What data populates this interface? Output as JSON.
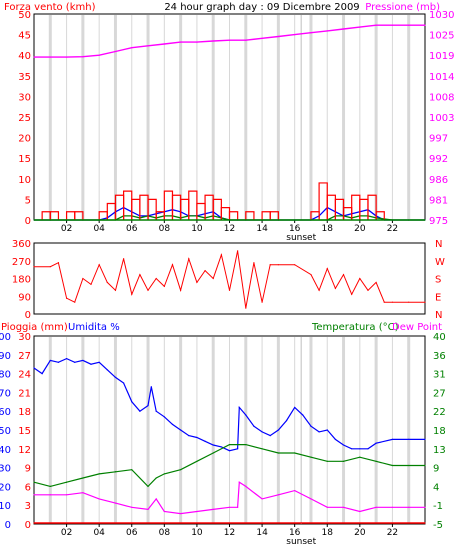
{
  "chart_data": [
    {
      "id": "wind_pressure",
      "type": "line",
      "title": "24 hour graph day : 09 Dicembre 2009",
      "ylabel_left": "Forza vento (kmh)",
      "ylabel_right": "Pressione (mb)",
      "y_left_ticks": [
        "0",
        "5",
        "10",
        "15",
        "20",
        "25",
        "30",
        "35",
        "40",
        "45",
        "50"
      ],
      "y_right_ticks": [
        "975",
        "981",
        "986",
        "992",
        "997",
        "1003",
        "1008",
        "1014",
        "1019",
        "1025",
        "1030"
      ],
      "ylim_left": [
        0,
        50
      ],
      "ylim_right": [
        975,
        1030
      ],
      "x_ticks": [
        "02",
        "04",
        "06",
        "08",
        "10",
        "12",
        "14",
        "16",
        "18",
        "20",
        "22"
      ],
      "xlim": [
        0,
        24
      ],
      "sunset_label": "sunset",
      "sunset_x": 16.4,
      "grid": true,
      "series": [
        {
          "axis": "right",
          "color": "#ff00ff",
          "x": [
            0,
            1,
            2,
            3,
            4,
            5,
            6,
            7,
            8,
            9,
            10,
            11,
            12,
            13,
            14,
            15,
            16,
            17,
            18,
            19,
            20,
            21,
            22,
            23,
            24
          ],
          "y": [
            1018.5,
            1018.5,
            1018.5,
            1018.6,
            1019.0,
            1020.0,
            1021.0,
            1021.5,
            1022.0,
            1022.5,
            1022.5,
            1022.8,
            1023.0,
            1023.0,
            1023.5,
            1024.0,
            1024.5,
            1025.0,
            1025.5,
            1026.0,
            1026.5,
            1027.0,
            1027.0,
            1027.0,
            1027.0
          ]
        },
        {
          "axis": "left",
          "color": "#0000ff",
          "x": [
            0,
            1,
            2,
            3,
            4,
            4.5,
            5,
            5.5,
            6,
            6.5,
            7,
            7.5,
            8,
            8.5,
            9,
            9.5,
            10,
            10.5,
            11,
            11.5,
            12,
            12.5,
            13,
            14,
            15,
            16,
            17,
            17.5,
            18,
            18.5,
            19,
            19.5,
            20,
            20.5,
            21,
            21.5,
            22,
            23,
            24
          ],
          "y": [
            0,
            0,
            0,
            0,
            0,
            0.5,
            2,
            3,
            2,
            1,
            1,
            1.5,
            2,
            2.5,
            2,
            1,
            1,
            1.5,
            2,
            0.5,
            0,
            0,
            0,
            0,
            0,
            0,
            0,
            1,
            3,
            2,
            1,
            1.5,
            2,
            2.5,
            1,
            0,
            0,
            0,
            0
          ]
        },
        {
          "axis": "left",
          "color": "#008000",
          "x": [
            0,
            1,
            2,
            3,
            4,
            5,
            5.5,
            6,
            6.5,
            7,
            7.5,
            8,
            8.5,
            9,
            9.5,
            10,
            10.5,
            11,
            12,
            13,
            14,
            15,
            16,
            17,
            18,
            18.5,
            19,
            19.5,
            20,
            20.5,
            21,
            22,
            23,
            24
          ],
          "y": [
            0,
            0,
            0,
            0,
            0,
            0,
            1,
            1,
            0.5,
            1,
            0.5,
            1,
            1,
            0.5,
            1,
            1,
            0.5,
            1,
            0,
            0,
            0,
            0,
            0,
            0,
            0,
            1,
            1,
            0.5,
            1,
            1,
            0.5,
            0,
            0,
            0
          ]
        },
        {
          "axis": "left",
          "color": "#ff0000",
          "style": "gust",
          "x": [
            0.5,
            1,
            1.5,
            2,
            2.5,
            3,
            3.5,
            4,
            4.5,
            5,
            5.5,
            6,
            6.5,
            7,
            7.5,
            8,
            8.5,
            9,
            9.5,
            10,
            10.5,
            11,
            11.5,
            12,
            12.5,
            13,
            13.5,
            14,
            14.5,
            17,
            17.5,
            18,
            18.5,
            19,
            19.5,
            20,
            20.5,
            21,
            21.5
          ],
          "y": [
            2,
            2,
            0,
            2,
            2,
            0,
            0,
            2,
            4,
            6,
            7,
            5,
            6,
            5,
            2,
            7,
            6,
            5,
            7,
            4,
            6,
            5,
            3,
            2,
            0,
            2,
            0,
            2,
            2,
            2,
            9,
            6,
            5,
            3,
            6,
            5,
            6,
            2,
            0
          ]
        }
      ]
    },
    {
      "id": "wind_direction",
      "type": "line",
      "y_left_ticks": [
        "0",
        "90",
        "180",
        "270",
        "360"
      ],
      "y_right_ticks": [
        "N",
        "E",
        "S",
        "W",
        "N"
      ],
      "ylim": [
        0,
        360
      ],
      "xlim": [
        0,
        24
      ],
      "series": [
        {
          "color": "#ff0000",
          "x": [
            0,
            1,
            1.5,
            2,
            2.5,
            3,
            3.5,
            4,
            4.5,
            5,
            5.5,
            6,
            6.5,
            7,
            7.5,
            8,
            8.5,
            9,
            9.5,
            10,
            10.5,
            11,
            11.5,
            12,
            12.5,
            13,
            13.5,
            14,
            14.5,
            15,
            16,
            17,
            17.5,
            18,
            18.5,
            19,
            19.5,
            20,
            20.5,
            21,
            21.5,
            22,
            23,
            24
          ],
          "y": [
            240,
            240,
            260,
            80,
            60,
            180,
            150,
            250,
            160,
            120,
            280,
            100,
            200,
            120,
            180,
            140,
            250,
            120,
            280,
            160,
            220,
            180,
            300,
            120,
            320,
            30,
            260,
            60,
            250,
            250,
            250,
            200,
            120,
            230,
            130,
            200,
            100,
            180,
            120,
            160,
            60,
            60,
            60,
            60
          ]
        }
      ]
    },
    {
      "id": "temp_humidity",
      "type": "line",
      "ylabel_left_1": "Pioggia (mm)",
      "ylabel_left_2": "Umidita %",
      "ylabel_right_1": "Temperatura (°C)",
      "ylabel_right_2": "Dew Point",
      "y_left_ticks_1": [
        "0",
        "3",
        "6",
        "9",
        "12",
        "15",
        "18",
        "21",
        "24",
        "27",
        "30"
      ],
      "y_left_ticks_2": [
        "0",
        "10",
        "20",
        "30",
        "40",
        "50",
        "60",
        "70",
        "80",
        "90",
        "100"
      ],
      "y_right_ticks": [
        "-5",
        "-1",
        "4",
        "9",
        "13",
        "18",
        "22",
        "27",
        "31",
        "36",
        "40"
      ],
      "ylim_rain": [
        0,
        30
      ],
      "ylim_humidity": [
        0,
        100
      ],
      "ylim_temp": [
        -5,
        40
      ],
      "x_ticks": [
        "02",
        "04",
        "06",
        "08",
        "10",
        "12",
        "14",
        "16",
        "18",
        "20",
        "22"
      ],
      "xlim": [
        0,
        24
      ],
      "sunset_label": "sunset",
      "sunset_x": 16.4,
      "grid": true,
      "series": [
        {
          "axis": "humidity",
          "color": "#0000ff",
          "x": [
            0,
            0.5,
            1,
            1.5,
            2,
            2.5,
            3,
            3.5,
            4,
            4.5,
            5,
            5.5,
            6,
            6.5,
            7,
            7.2,
            7.5,
            8,
            8.5,
            9,
            9.5,
            10,
            10.5,
            11,
            11.5,
            12,
            12.5,
            12.6,
            13,
            13.5,
            14,
            14.5,
            15,
            15.5,
            16,
            16.5,
            17,
            17.5,
            18,
            18.5,
            19,
            19.5,
            20,
            20.5,
            21,
            22,
            23,
            24
          ],
          "y": [
            83,
            80,
            87,
            86,
            88,
            86,
            87,
            85,
            86,
            82,
            78,
            75,
            65,
            60,
            63,
            73,
            60,
            57,
            53,
            50,
            47,
            46,
            44,
            42,
            41,
            39,
            40,
            62,
            58,
            52,
            49,
            47,
            50,
            55,
            62,
            58,
            52,
            49,
            50,
            45,
            42,
            40,
            40,
            40,
            43,
            45,
            45,
            45
          ]
        },
        {
          "axis": "temp",
          "color": "#008000",
          "x": [
            0,
            1,
            2,
            3,
            4,
            5,
            6,
            7,
            7.5,
            8,
            9,
            10,
            11,
            12,
            13,
            14,
            15,
            16,
            17,
            18,
            19,
            20,
            21,
            22,
            23,
            24
          ],
          "y": [
            5,
            4,
            5,
            6,
            7,
            7.5,
            8,
            4,
            6,
            7,
            8,
            10,
            12,
            14,
            14,
            13,
            12,
            12,
            11,
            10,
            10,
            11,
            10,
            9,
            9,
            9
          ]
        },
        {
          "axis": "temp",
          "color": "#ff00ff",
          "x": [
            0,
            1,
            2,
            3,
            4,
            5,
            6,
            7,
            7.5,
            8,
            9,
            10,
            11,
            12,
            12.5,
            12.6,
            13,
            14,
            15,
            16,
            17,
            18,
            19,
            20,
            21,
            22,
            23,
            24
          ],
          "y": [
            2,
            2,
            2,
            2.5,
            1,
            0,
            -1,
            -1.5,
            1,
            -2,
            -2.5,
            -2,
            -1.5,
            -1,
            -1,
            5,
            4,
            1,
            2,
            3,
            1,
            -1,
            -1,
            -2,
            -1,
            -1,
            -1,
            -1
          ]
        },
        {
          "axis": "rain",
          "color": "#ff0000",
          "x": [
            0,
            24
          ],
          "y": [
            0,
            0
          ]
        }
      ]
    }
  ]
}
